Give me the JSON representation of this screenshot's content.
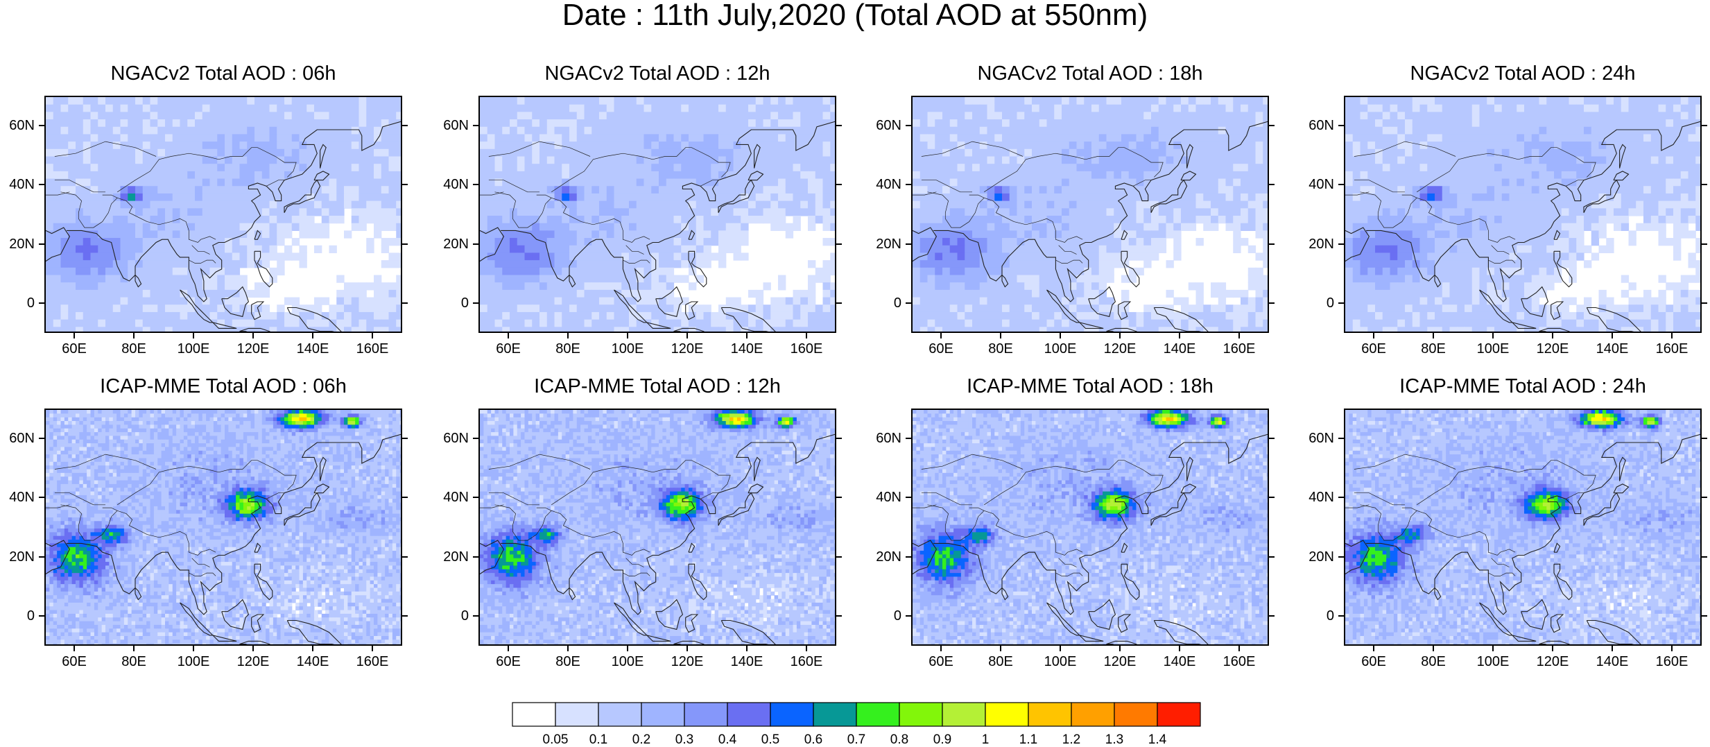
{
  "title": "Date : 11th July,2020 (Total AOD at 550nm)",
  "panels": [
    {
      "title": "NGACv2 Total AOD : 06h",
      "model": "NGACv2",
      "hour": "06h"
    },
    {
      "title": "NGACv2 Total AOD : 12h",
      "model": "NGACv2",
      "hour": "12h"
    },
    {
      "title": "NGACv2 Total AOD : 18h",
      "model": "NGACv2",
      "hour": "18h"
    },
    {
      "title": "NGACv2 Total AOD : 24h",
      "model": "NGACv2",
      "hour": "24h"
    },
    {
      "title": "ICAP-MME Total AOD : 06h",
      "model": "ICAP-MME",
      "hour": "06h"
    },
    {
      "title": "ICAP-MME Total AOD : 12h",
      "model": "ICAP-MME",
      "hour": "12h"
    },
    {
      "title": "ICAP-MME Total AOD : 18h",
      "model": "ICAP-MME",
      "hour": "18h"
    },
    {
      "title": "ICAP-MME Total AOD : 24h",
      "model": "ICAP-MME",
      "hour": "24h"
    }
  ],
  "map_extent": {
    "lon_min": 50,
    "lon_max": 170,
    "lat_min": -10,
    "lat_max": 70
  },
  "x_ticks": [
    {
      "value": 60,
      "label": "60E"
    },
    {
      "value": 80,
      "label": "80E"
    },
    {
      "value": 100,
      "label": "100E"
    },
    {
      "value": 120,
      "label": "120E"
    },
    {
      "value": 140,
      "label": "140E"
    },
    {
      "value": 160,
      "label": "160E"
    }
  ],
  "y_ticks": [
    {
      "value": 60,
      "label": "60N"
    },
    {
      "value": 40,
      "label": "40N"
    },
    {
      "value": 20,
      "label": "20N"
    },
    {
      "value": 0,
      "label": "0"
    }
  ],
  "colorbar": {
    "levels": [
      "0.05",
      "0.1",
      "0.2",
      "0.3",
      "0.4",
      "0.5",
      "0.6",
      "0.7",
      "0.8",
      "0.9",
      "1",
      "1.1",
      "1.2",
      "1.3",
      "1.4"
    ],
    "colors": [
      "#ffffff",
      "#d7e1ff",
      "#b7c8ff",
      "#9fb4ff",
      "#8597fa",
      "#6a6ff2",
      "#0a64ff",
      "#079896",
      "#35f01e",
      "#82f60a",
      "#b4f036",
      "#ffff00",
      "#ffc400",
      "#ffa000",
      "#ff7a00",
      "#ff1e00"
    ]
  }
}
